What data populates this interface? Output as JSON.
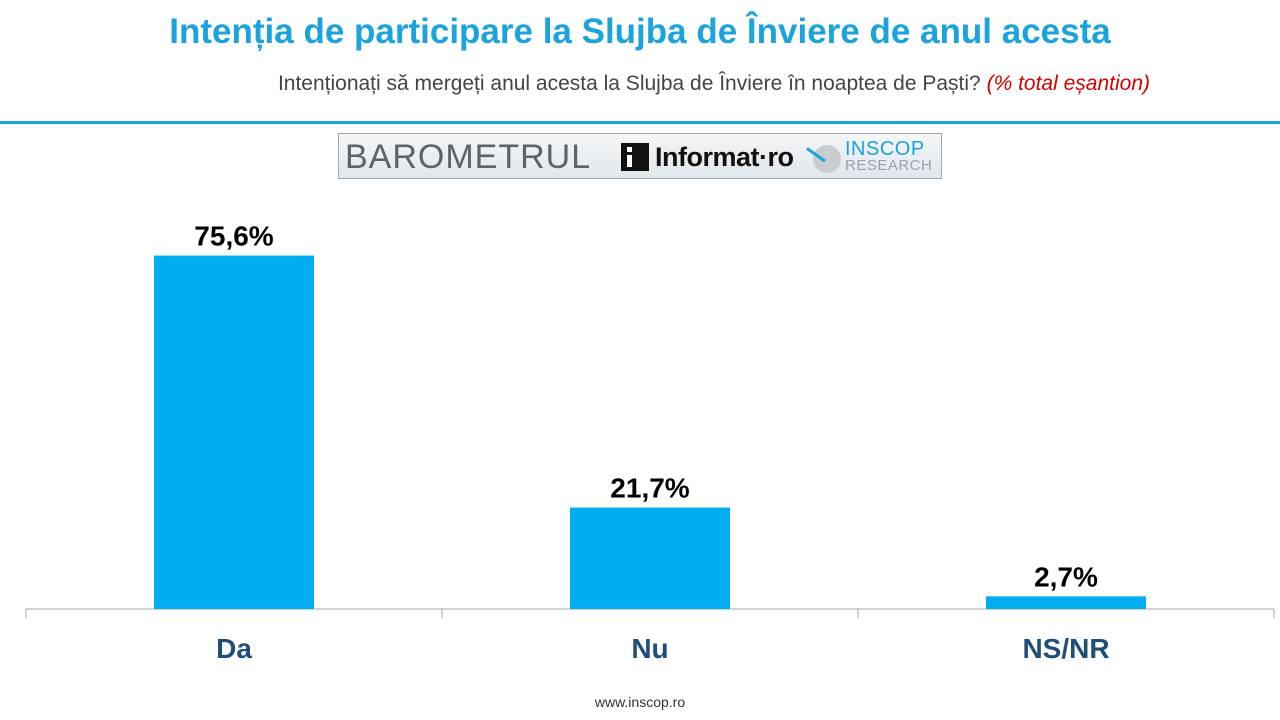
{
  "header": {
    "title": "Intenția de participare la Slujba de Înviere de anul acesta",
    "subtitle": "Intenționați să mergeți anul acesta la Slujba de Înviere în noaptea de Paști?",
    "subtitle_note": "(% total eșantion)"
  },
  "logos": {
    "barometru": "BAROMETRUL",
    "informat": "Informat·ro",
    "inscop_name": "INSCOP",
    "inscop_sub": "RESEARCH"
  },
  "colors": {
    "accent": "#1aa3dd",
    "bar": "#00adee",
    "category_label": "#1f4e79",
    "note": "#d40000"
  },
  "chart_data": {
    "type": "bar",
    "categories": [
      "Da",
      "Nu",
      "NS/NR"
    ],
    "values": [
      75.6,
      21.7,
      2.7
    ],
    "data_labels": [
      "75,6%",
      "21,7%",
      "2,7%"
    ],
    "ylim": [
      0,
      80
    ],
    "grid": false,
    "legend": "none"
  },
  "footer": {
    "url": "www.inscop.ro"
  }
}
